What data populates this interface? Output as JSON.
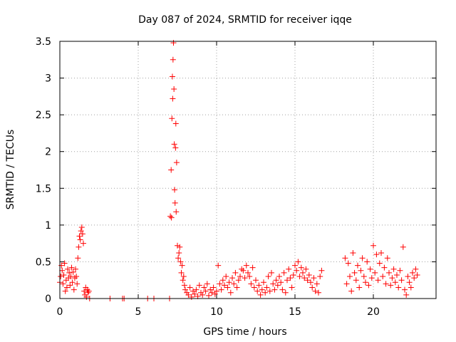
{
  "chart_data": {
    "type": "scatter",
    "title": "Day 087 of 2024, SRMTID for receiver iqqe",
    "xlabel": "GPS time / hours",
    "ylabel": "SRMTID / TECUs",
    "xlim": [
      0,
      24
    ],
    "ylim": [
      0,
      3.5
    ],
    "xticks": [
      0,
      5,
      10,
      15,
      20
    ],
    "xtick_labels": [
      "0",
      "5",
      "10",
      "15",
      "20"
    ],
    "yticks": [
      0,
      0.5,
      1,
      1.5,
      2,
      2.5,
      3,
      3.5
    ],
    "ytick_labels": [
      "0",
      "0.5",
      "1",
      "1.5",
      "2",
      "2.5",
      "3",
      "3.5"
    ],
    "grid": true,
    "marker": "+",
    "series": [
      {
        "name": "SRMTID",
        "color": "#ff0000",
        "x": [
          0.0,
          0.05,
          0.1,
          0.15,
          0.2,
          0.25,
          0.3,
          0.35,
          0.4,
          0.45,
          0.5,
          0.55,
          0.6,
          0.65,
          0.7,
          0.75,
          0.8,
          0.85,
          0.9,
          0.95,
          1.0,
          1.05,
          1.1,
          1.15,
          1.2,
          1.25,
          1.3,
          1.35,
          1.4,
          1.45,
          1.5,
          1.55,
          1.6,
          1.65,
          1.7,
          1.75,
          1.8,
          1.85,
          1.9,
          3.2,
          4.0,
          4.1,
          5.6,
          6.0,
          7.0,
          7.05,
          7.1,
          7.12,
          7.15,
          7.18,
          7.2,
          7.22,
          7.25,
          7.28,
          7.3,
          7.32,
          7.35,
          7.38,
          7.4,
          7.42,
          7.45,
          7.5,
          7.55,
          7.6,
          7.65,
          7.7,
          7.75,
          7.8,
          7.85,
          7.9,
          7.95,
          8.0,
          8.1,
          8.2,
          8.3,
          8.4,
          8.5,
          8.6,
          8.7,
          8.8,
          8.9,
          9.0,
          9.1,
          9.2,
          9.3,
          9.4,
          9.5,
          9.6,
          9.7,
          9.8,
          9.9,
          10.0,
          10.1,
          10.2,
          10.3,
          10.4,
          10.5,
          10.6,
          10.7,
          10.8,
          10.9,
          11.0,
          11.1,
          11.2,
          11.3,
          11.4,
          11.5,
          11.6,
          11.7,
          11.8,
          11.9,
          12.0,
          12.1,
          12.2,
          12.3,
          12.4,
          12.5,
          12.6,
          12.7,
          12.8,
          12.9,
          13.0,
          13.1,
          13.2,
          13.3,
          13.4,
          13.5,
          13.6,
          13.7,
          13.8,
          13.9,
          14.0,
          14.1,
          14.2,
          14.3,
          14.4,
          14.5,
          14.6,
          14.7,
          14.8,
          14.9,
          15.0,
          15.1,
          15.2,
          15.3,
          15.4,
          15.5,
          15.6,
          15.7,
          15.8,
          15.9,
          16.0,
          16.1,
          16.2,
          16.3,
          16.4,
          16.5,
          16.6,
          16.7,
          18.2,
          18.3,
          18.4,
          18.5,
          18.6,
          18.7,
          18.8,
          18.9,
          19.0,
          19.1,
          19.2,
          19.3,
          19.4,
          19.5,
          19.6,
          19.7,
          19.8,
          19.9,
          20.0,
          20.1,
          20.2,
          20.3,
          20.4,
          20.5,
          20.6,
          20.7,
          20.8,
          20.9,
          21.0,
          21.1,
          21.2,
          21.3,
          21.4,
          21.5,
          21.6,
          21.7,
          21.8,
          21.9,
          22.0,
          22.1,
          22.2,
          22.3,
          22.4,
          22.5,
          22.6,
          22.7,
          22.8
        ],
        "y": [
          0.22,
          0.3,
          0.45,
          0.38,
          0.2,
          0.32,
          0.48,
          0.1,
          0.25,
          0.15,
          0.4,
          0.28,
          0.35,
          0.18,
          0.3,
          0.42,
          0.22,
          0.36,
          0.12,
          0.28,
          0.4,
          0.3,
          0.2,
          0.55,
          0.7,
          0.85,
          0.8,
          0.92,
          0.97,
          0.88,
          0.75,
          0.1,
          0.05,
          0.15,
          0.02,
          0.12,
          0.08,
          0.1,
          0.0,
          0.0,
          0.0,
          0.0,
          0.0,
          0.0,
          0.0,
          1.12,
          1.75,
          1.1,
          2.45,
          3.02,
          2.72,
          3.25,
          3.48,
          2.85,
          2.1,
          1.48,
          1.3,
          2.05,
          2.38,
          1.18,
          1.85,
          0.72,
          0.55,
          0.62,
          0.7,
          0.5,
          0.35,
          0.45,
          0.25,
          0.3,
          0.18,
          0.12,
          0.08,
          0.05,
          0.15,
          0.02,
          0.1,
          0.06,
          0.12,
          0.03,
          0.18,
          0.08,
          0.05,
          0.15,
          0.1,
          0.2,
          0.04,
          0.12,
          0.08,
          0.15,
          0.06,
          0.1,
          0.45,
          0.2,
          0.12,
          0.25,
          0.18,
          0.3,
          0.15,
          0.22,
          0.08,
          0.28,
          0.2,
          0.35,
          0.15,
          0.25,
          0.3,
          0.4,
          0.38,
          0.28,
          0.45,
          0.35,
          0.3,
          0.2,
          0.42,
          0.15,
          0.25,
          0.1,
          0.18,
          0.05,
          0.12,
          0.22,
          0.08,
          0.15,
          0.3,
          0.1,
          0.35,
          0.2,
          0.12,
          0.25,
          0.18,
          0.3,
          0.22,
          0.12,
          0.35,
          0.08,
          0.25,
          0.4,
          0.28,
          0.15,
          0.32,
          0.45,
          0.38,
          0.5,
          0.3,
          0.42,
          0.35,
          0.28,
          0.4,
          0.25,
          0.32,
          0.22,
          0.15,
          0.28,
          0.1,
          0.2,
          0.08,
          0.3,
          0.38,
          0.55,
          0.2,
          0.48,
          0.3,
          0.1,
          0.62,
          0.35,
          0.25,
          0.45,
          0.15,
          0.38,
          0.55,
          0.3,
          0.22,
          0.5,
          0.18,
          0.4,
          0.28,
          0.72,
          0.35,
          0.6,
          0.25,
          0.48,
          0.62,
          0.3,
          0.42,
          0.2,
          0.55,
          0.35,
          0.18,
          0.28,
          0.4,
          0.22,
          0.32,
          0.15,
          0.38,
          0.25,
          0.7,
          0.12,
          0.05,
          0.3,
          0.22,
          0.15,
          0.35,
          0.28,
          0.4,
          0.32
        ]
      }
    ]
  }
}
